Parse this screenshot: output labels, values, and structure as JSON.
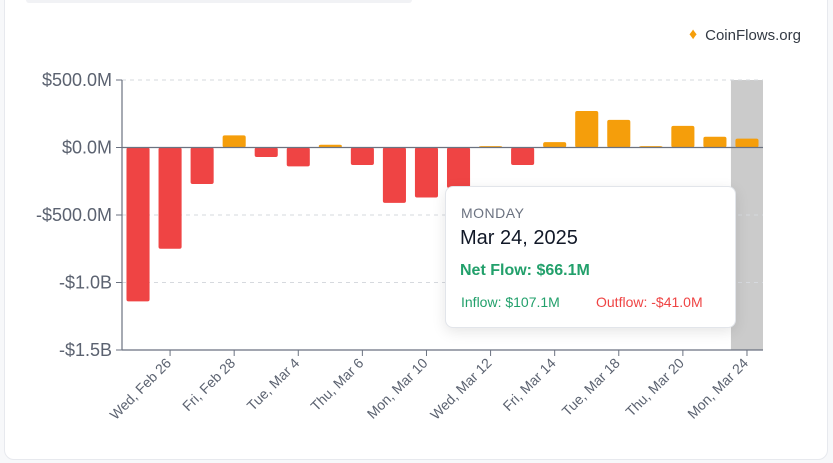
{
  "brand": {
    "name": "CoinFlows.org",
    "icon": "diamond-icon"
  },
  "tooltip": {
    "day": "MONDAY",
    "date": "Mar 24, 2025",
    "net_flow": "Net Flow: $66.1M",
    "inflow": "Inflow: $107.1M",
    "outflow": "Outflow: -$41.0M"
  },
  "colors": {
    "negative": "#ef4444",
    "positive": "#f59e0b",
    "highlight": "#cbcbcb"
  },
  "chart_data": {
    "type": "bar",
    "title": "",
    "xlabel": "",
    "ylabel": "",
    "ylim": [
      -1500,
      500
    ],
    "unit": "$M",
    "yticks": [
      {
        "value": 500,
        "label": "$500.0M"
      },
      {
        "value": 0,
        "label": "$0.0M"
      },
      {
        "value": -500,
        "label": "-$500.0M"
      },
      {
        "value": -1000,
        "label": "-$1.0B"
      },
      {
        "value": -1500,
        "label": "-$1.5B"
      }
    ],
    "grid": true,
    "highlighted_category": "2025-03-24",
    "categories": [
      "2025-02-25",
      "2025-02-26",
      "2025-02-27",
      "2025-02-28",
      "2025-03-03",
      "2025-03-04",
      "2025-03-05",
      "2025-03-06",
      "2025-03-07",
      "2025-03-10",
      "2025-03-11",
      "2025-03-12",
      "2025-03-13",
      "2025-03-14",
      "2025-03-17",
      "2025-03-18",
      "2025-03-19",
      "2025-03-20",
      "2025-03-21",
      "2025-03-24"
    ],
    "values": [
      -1140,
      -750,
      -270,
      90,
      -70,
      -140,
      20,
      -130,
      -410,
      -370,
      -300,
      10,
      -130,
      40,
      270,
      205,
      10,
      160,
      80,
      66.1
    ],
    "tick_labels": [
      "Wed, Feb 26",
      "Fri, Feb 28",
      "Tue, Mar 4",
      "Thu, Mar 6",
      "Mon, Mar 10",
      "Wed, Mar 12",
      "Fri, Mar 14",
      "Tue, Mar 18",
      "Thu, Mar 20",
      "Mon, Mar 24"
    ],
    "tick_label_categories": [
      "2025-02-26",
      "2025-02-28",
      "2025-03-04",
      "2025-03-06",
      "2025-03-10",
      "2025-03-12",
      "2025-03-14",
      "2025-03-18",
      "2025-03-20",
      "2025-03-24"
    ]
  }
}
